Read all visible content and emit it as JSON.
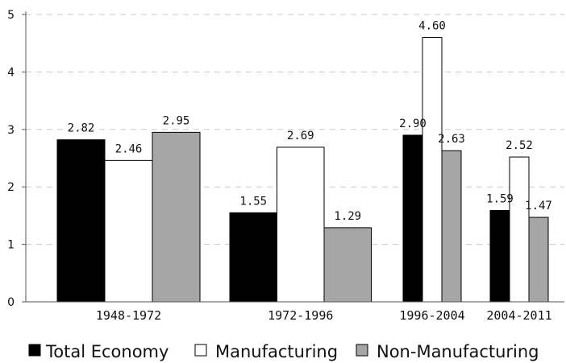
{
  "chart_data": {
    "type": "bar",
    "categories": [
      "1948-1972",
      "1972-1996",
      "1996-2004",
      "2004-2011"
    ],
    "series": [
      {
        "name": "Total Economy",
        "values": [
          2.82,
          1.55,
          2.9,
          1.59
        ],
        "color": "#000000"
      },
      {
        "name": "Manufacturing",
        "values": [
          2.46,
          2.69,
          4.6,
          2.52
        ],
        "color": "#ffffff"
      },
      {
        "name": "Non-Manufacturing",
        "values": [
          2.95,
          1.29,
          2.63,
          1.47
        ],
        "color": "#a6a6a6"
      }
    ],
    "value_labels": [
      [
        "2.82",
        "1.55",
        "2.90",
        "1.59"
      ],
      [
        "2.46",
        "2.69",
        "4.60",
        "2.52"
      ],
      [
        "2.95",
        "1.29",
        "2.63",
        "1.47"
      ]
    ],
    "yticks": [
      "0",
      "1",
      "2",
      "3",
      "4",
      "5"
    ],
    "ylim": [
      0,
      5
    ],
    "grid": "dashed horizontal",
    "legend": "bottom",
    "title": "",
    "xlabel": "",
    "ylabel": ""
  }
}
